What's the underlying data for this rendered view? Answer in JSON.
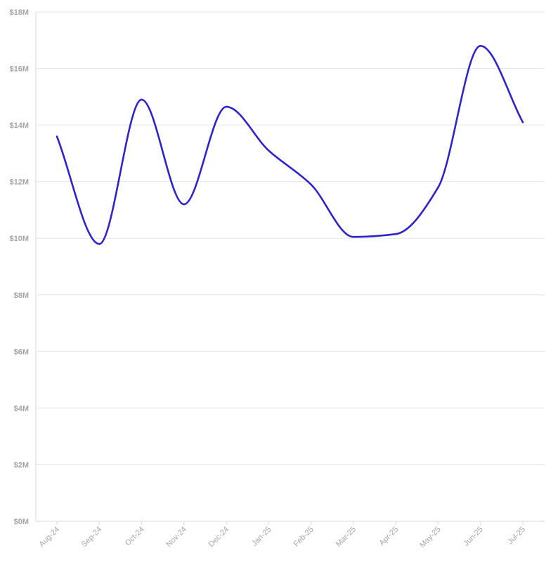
{
  "chart_data": {
    "type": "line",
    "title": "",
    "xlabel": "",
    "ylabel": "",
    "categories": [
      "Aug-24",
      "Sep-24",
      "Oct-24",
      "Nov-24",
      "Dec-24",
      "Jan-25",
      "Feb-25",
      "Mar-25",
      "Apr-25",
      "May-25",
      "Jun-25",
      "Jul-25"
    ],
    "series": [
      {
        "values": [
          13.6,
          9.8,
          14.9,
          11.2,
          14.65,
          13.1,
          11.9,
          10.05,
          10.15,
          11.8,
          16.8,
          14.1
        ],
        "color": "#2f24c9"
      }
    ],
    "ylim": [
      0,
      18
    ],
    "yticks": [
      0,
      2,
      4,
      6,
      8,
      10,
      12,
      14,
      16,
      18
    ],
    "ytick_labels": [
      "$0M",
      "$2M",
      "$4M",
      "$6M",
      "$8M",
      "$10M",
      "$12M",
      "$14M",
      "$16M",
      "$18M"
    ],
    "grid": true,
    "legend": "none",
    "colors": {
      "grid": "#e6e6e6",
      "tick_label": "#a6a6a6"
    }
  }
}
